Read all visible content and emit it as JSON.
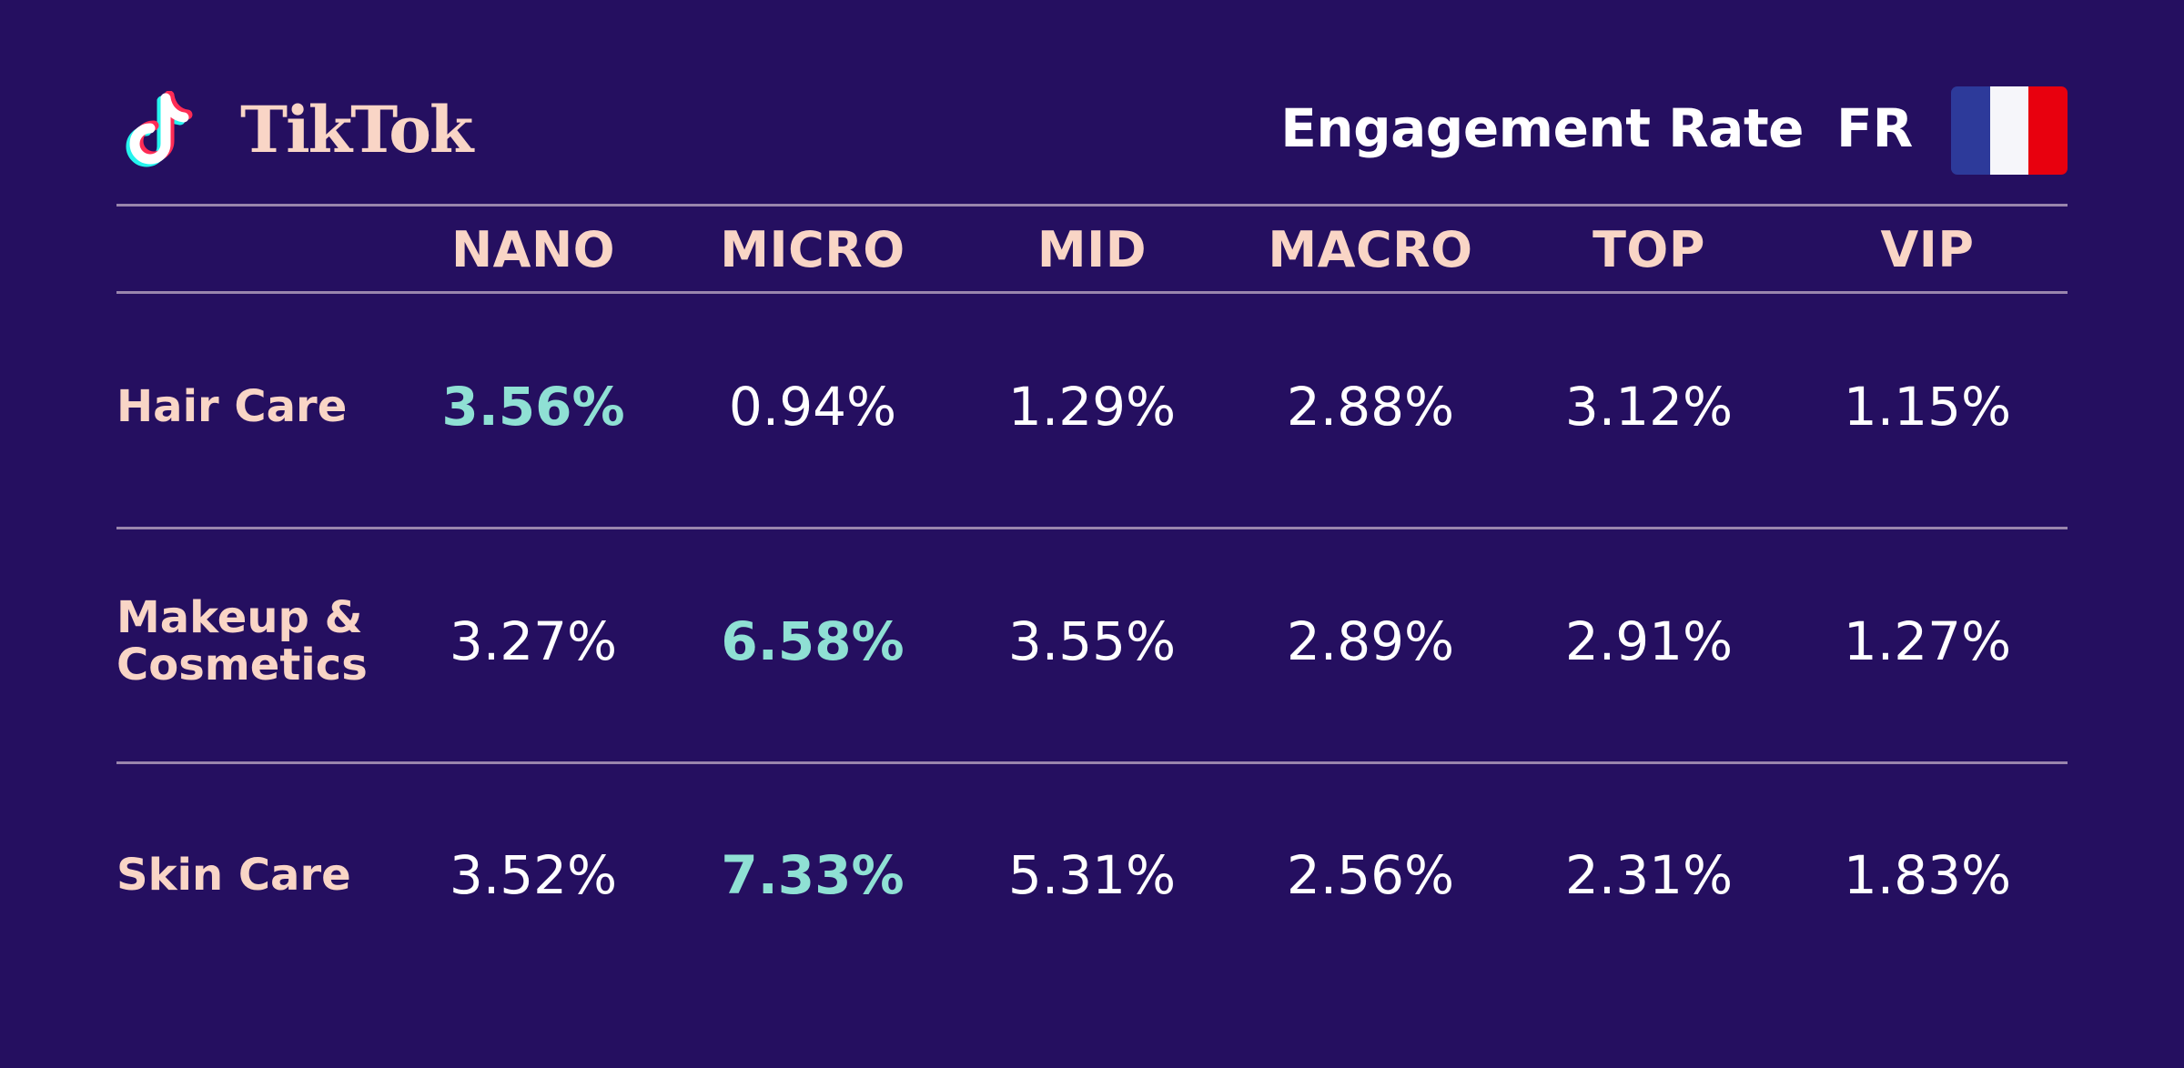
{
  "header": {
    "brand": "TikTok",
    "logo_icon": "tiktok-note-icon",
    "metric": "Engagement Rate",
    "country": "FR",
    "flag_icon": "france-flag-icon",
    "flag_colors": [
      "#2d3a9a",
      "#f6f6fa",
      "#e8000e"
    ]
  },
  "colors": {
    "background": "#250f60",
    "label": "#f9d5c6",
    "value": "#ffffff",
    "highlight": "#8fe0d4",
    "rule": "#9a86ad"
  },
  "chart_data": {
    "type": "table",
    "title": "Engagement Rate",
    "columns": [
      "NANO",
      "MICRO",
      "MID",
      "MACRO",
      "TOP",
      "VIP"
    ],
    "rows": [
      {
        "label": "Hair Care",
        "values": [
          "3.56%",
          "0.94%",
          "1.29%",
          "2.88%",
          "3.12%",
          "1.15%"
        ],
        "highlight_index": 0
      },
      {
        "label": "Makeup & Cosmetics",
        "label_lines": [
          "Makeup &",
          "Cosmetics"
        ],
        "values": [
          "3.27%",
          "6.58%",
          "3.55%",
          "2.89%",
          "2.91%",
          "1.27%"
        ],
        "highlight_index": 1
      },
      {
        "label": "Skin Care",
        "values": [
          "3.52%",
          "7.33%",
          "5.31%",
          "2.56%",
          "2.31%",
          "1.83%"
        ],
        "highlight_index": 1
      }
    ]
  }
}
